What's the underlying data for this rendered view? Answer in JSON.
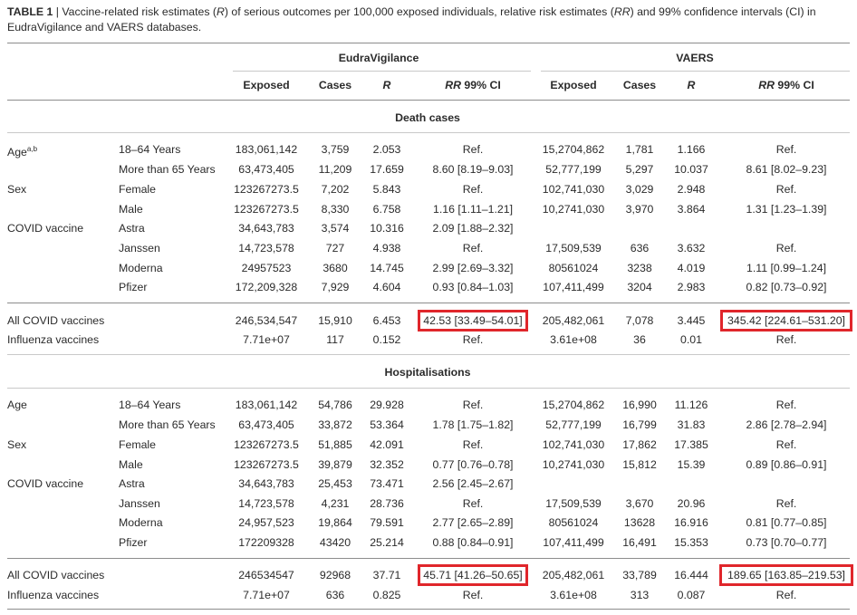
{
  "caption": {
    "label": "TABLE 1",
    "sep": " | ",
    "text_pre": "Vaccine-related risk estimates (",
    "r_sym": "R",
    "text_mid": ") of serious outcomes per 100,000 exposed individuals, relative risk estimates (",
    "rr_sym": "RR",
    "text_post": ") and 99% confidence intervals (CI) in EudraVigilance and VAERS databases."
  },
  "groups": {
    "left": "EudraVigilance",
    "right": "VAERS"
  },
  "headers": {
    "exposed": "Exposed",
    "cases": "Cases",
    "r": "R",
    "rr_italic": "RR",
    "rr_rest": " 99% CI"
  },
  "sections": [
    {
      "title": "Death cases",
      "rows": [
        {
          "cat": "Age",
          "sup": "a,b",
          "sub": "18–64 Years",
          "ev": [
            "183,061,142",
            "3,759",
            "2.053",
            "Ref."
          ],
          "va": [
            "15,2704,862",
            "1,781",
            "1.166",
            "Ref."
          ]
        },
        {
          "cat": "",
          "sub": "More than 65 Years",
          "ev": [
            "63,473,405",
            "11,209",
            "17.659",
            "8.60 [8.19–9.03]"
          ],
          "va": [
            "52,777,199",
            "5,297",
            "10.037",
            "8.61 [8.02–9.23]"
          ]
        },
        {
          "cat": "Sex",
          "sub": "Female",
          "ev": [
            "123267273.5",
            "7,202",
            "5.843",
            "Ref."
          ],
          "va": [
            "102,741,030",
            "3,029",
            "2.948",
            "Ref."
          ]
        },
        {
          "cat": "",
          "sub": "Male",
          "ev": [
            "123267273.5",
            "8,330",
            "6.758",
            "1.16 [1.11–1.21]"
          ],
          "va": [
            "10,2741,030",
            "3,970",
            "3.864",
            "1.31 [1.23–1.39]"
          ]
        },
        {
          "cat": "COVID vaccine",
          "sub": "Astra",
          "ev": [
            "34,643,783",
            "3,574",
            "10.316",
            "2.09 [1.88–2.32]"
          ],
          "va": [
            "",
            "",
            "",
            ""
          ]
        },
        {
          "cat": "",
          "sub": "Janssen",
          "ev": [
            "14,723,578",
            "727",
            "4.938",
            "Ref."
          ],
          "va": [
            "17,509,539",
            "636",
            "3.632",
            "Ref."
          ]
        },
        {
          "cat": "",
          "sub": "Moderna",
          "ev": [
            "24957523",
            "3680",
            "14.745",
            "2.99 [2.69–3.32]"
          ],
          "va": [
            "80561024",
            "3238",
            "4.019",
            "1.11 [0.99–1.24]"
          ]
        },
        {
          "cat": "",
          "sub": "Pfizer",
          "ev": [
            "172,209,328",
            "7,929",
            "4.604",
            "0.93 [0.84–1.03]"
          ],
          "va": [
            "107,411,499",
            "3204",
            "2.983",
            "0.82 [0.73–0.92]"
          ]
        }
      ],
      "totals": [
        {
          "cat": "All COVID vaccines",
          "ev": [
            "246,534,547",
            "15,910",
            "6.453",
            "42.53 [33.49–54.01]"
          ],
          "va": [
            "205,482,061",
            "7,078",
            "3.445",
            "345.42 [224.61–531.20]"
          ]
        },
        {
          "cat": "Influenza vaccines",
          "ev": [
            "7.71e+07",
            "117",
            "0.152",
            "Ref."
          ],
          "va": [
            "3.61e+08",
            "36",
            "0.01",
            "Ref."
          ]
        }
      ]
    },
    {
      "title": "Hospitalisations",
      "rows": [
        {
          "cat": "Age",
          "sup": "",
          "sub": "18–64 Years",
          "ev": [
            "183,061,142",
            "54,786",
            "29.928",
            "Ref."
          ],
          "va": [
            "15,2704,862",
            "16,990",
            "11.126",
            "Ref."
          ]
        },
        {
          "cat": "",
          "sub": "More than 65 Years",
          "ev": [
            "63,473,405",
            "33,872",
            "53.364",
            "1.78 [1.75–1.82]"
          ],
          "va": [
            "52,777,199",
            "16,799",
            "31.83",
            "2.86 [2.78–2.94]"
          ]
        },
        {
          "cat": "Sex",
          "sub": "Female",
          "ev": [
            "123267273.5",
            "51,885",
            "42.091",
            "Ref."
          ],
          "va": [
            "102,741,030",
            "17,862",
            "17.385",
            "Ref."
          ]
        },
        {
          "cat": "",
          "sub": "Male",
          "ev": [
            "123267273.5",
            "39,879",
            "32.352",
            "0.77 [0.76–0.78]"
          ],
          "va": [
            "10,2741,030",
            "15,812",
            "15.39",
            "0.89 [0.86–0.91]"
          ]
        },
        {
          "cat": "COVID vaccine",
          "sub": "Astra",
          "ev": [
            "34,643,783",
            "25,453",
            "73.471",
            "2.56 [2.45–2.67]"
          ],
          "va": [
            "",
            "",
            "",
            ""
          ]
        },
        {
          "cat": "",
          "sub": "Janssen",
          "ev": [
            "14,723,578",
            "4,231",
            "28.736",
            "Ref."
          ],
          "va": [
            "17,509,539",
            "3,670",
            "20.96",
            "Ref."
          ]
        },
        {
          "cat": "",
          "sub": "Moderna",
          "ev": [
            "24,957,523",
            "19,864",
            "79.591",
            "2.77 [2.65–2.89]"
          ],
          "va": [
            "80561024",
            "13628",
            "16.916",
            "0.81 [0.77–0.85]"
          ]
        },
        {
          "cat": "",
          "sub": "Pfizer",
          "ev": [
            "172209328",
            "43420",
            "25.214",
            "0.88 [0.84–0.91]"
          ],
          "va": [
            "107,411,499",
            "16,491",
            "15.353",
            "0.73 [0.70–0.77]"
          ]
        }
      ],
      "totals": [
        {
          "cat": "All COVID vaccines",
          "ev": [
            "246534547",
            "92968",
            "37.71",
            "45.71 [41.26–50.65]"
          ],
          "va": [
            "205,482,061",
            "33,789",
            "16.444",
            "189.65 [163.85–219.53]"
          ]
        },
        {
          "cat": "Influenza vaccines",
          "ev": [
            "7.71e+07",
            "636",
            "0.825",
            "Ref."
          ],
          "va": [
            "3.61e+08",
            "313",
            "0.087",
            "Ref."
          ]
        }
      ]
    }
  ],
  "highlight_color": "#e0262b"
}
